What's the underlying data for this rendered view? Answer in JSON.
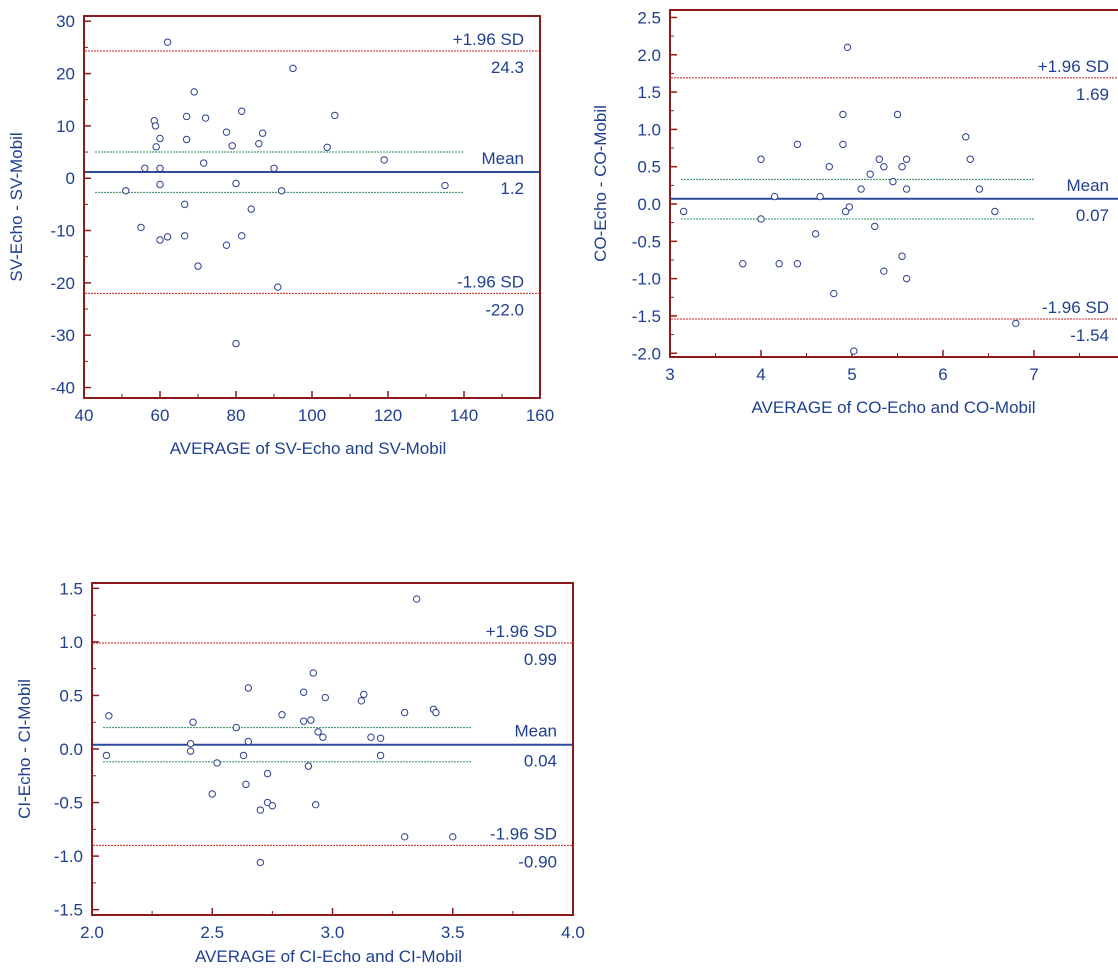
{
  "colors": {
    "frame": "#8b1a1a",
    "mean_line": "#2b4a9a",
    "limit_line": "#cc2222",
    "ci_line": "#2e8b57",
    "point_stroke": "#2b3f8f",
    "text": "#1f3f8f"
  },
  "chart_data": [
    {
      "type": "scatter",
      "title": "",
      "xlabel": "AVERAGE of SV-Echo and SV-Mobil",
      "ylabel": "SV-Echo - SV-Mobil",
      "xlim": [
        40,
        160
      ],
      "ylim": [
        -42,
        31
      ],
      "xticks": [
        40,
        60,
        80,
        100,
        120,
        140,
        160
      ],
      "yticks": [
        -40,
        -30,
        -20,
        -10,
        0,
        10,
        20,
        30
      ],
      "xtick_labels": [
        "40",
        "60",
        "80",
        "100",
        "120",
        "140",
        "160"
      ],
      "ytick_labels": [
        "-40",
        "-30",
        "-20",
        "-10",
        "0",
        "10",
        "20",
        "30"
      ],
      "lines": {
        "mean": 1.2,
        "upper": 24.3,
        "lower": -22.0,
        "mean_ci": [
          5.0,
          -2.7
        ],
        "ci_x_end": 140
      },
      "annotations": {
        "upper_label": "+1.96 SD",
        "upper_value": "24.3",
        "mean_label": "Mean",
        "mean_value": "1.2",
        "lower_label": "-1.96 SD",
        "lower_value": "-22.0"
      },
      "points": [
        [
          62,
          26
        ],
        [
          95,
          21
        ],
        [
          69,
          16.5
        ],
        [
          106,
          12
        ],
        [
          81.5,
          12.8
        ],
        [
          58.5,
          11
        ],
        [
          67,
          11.8
        ],
        [
          72,
          11.5
        ],
        [
          58.8,
          10
        ],
        [
          77.5,
          8.8
        ],
        [
          87,
          8.6
        ],
        [
          60,
          7.6
        ],
        [
          67,
          7.4
        ],
        [
          86,
          6.6
        ],
        [
          79,
          6.2
        ],
        [
          104,
          5.9
        ],
        [
          59,
          6
        ],
        [
          119,
          3.5
        ],
        [
          71.5,
          2.9
        ],
        [
          56,
          1.9
        ],
        [
          60,
          1.9
        ],
        [
          90,
          1.9
        ],
        [
          80,
          -1
        ],
        [
          60,
          -1.2
        ],
        [
          51,
          -2.4
        ],
        [
          92,
          -2.4
        ],
        [
          135,
          -1.4
        ],
        [
          84,
          -5.9
        ],
        [
          66.5,
          -5
        ],
        [
          55,
          -9.4
        ],
        [
          60,
          -11.8
        ],
        [
          62,
          -11.2
        ],
        [
          66.5,
          -11
        ],
        [
          81.5,
          -11
        ],
        [
          77.5,
          -12.8
        ],
        [
          70,
          -16.8
        ],
        [
          91,
          -20.8
        ],
        [
          80,
          -31.6
        ]
      ]
    },
    {
      "type": "scatter",
      "title": "",
      "xlabel": "AVERAGE of CO-Echo and CO-Mobil",
      "ylabel": "CO-Echo - CO-Mobil",
      "xlim": [
        3,
        8
      ],
      "ylim": [
        -2.05,
        2.6
      ],
      "xticks": [
        3,
        4,
        5,
        6,
        7,
        8
      ],
      "yticks": [
        -2.0,
        -1.5,
        -1.0,
        -0.5,
        0.0,
        0.5,
        1.0,
        1.5,
        2.0,
        2.5
      ],
      "xtick_labels": [
        "3",
        "4",
        "5",
        "6",
        "7",
        "8"
      ],
      "ytick_labels": [
        "-2.0",
        "-1.5",
        "-1.0",
        "-0.5",
        "0.0",
        "0.5",
        "1.0",
        "1.5",
        "2.0",
        "2.5"
      ],
      "lines": {
        "mean": 0.07,
        "upper": 1.69,
        "lower": -1.54,
        "mean_ci": [
          0.33,
          -0.2
        ],
        "ci_x_end": 7
      },
      "annotations": {
        "upper_label": "+1.96 SD",
        "upper_value": "1.69",
        "mean_label": "Mean",
        "mean_value": "0.07",
        "lower_label": "-1.96 SD",
        "lower_value": "-1.54"
      },
      "points": [
        [
          4.95,
          2.1
        ],
        [
          4.9,
          1.2
        ],
        [
          5.5,
          1.2
        ],
        [
          6.25,
          0.9
        ],
        [
          4.4,
          0.8
        ],
        [
          4.9,
          0.8
        ],
        [
          4,
          0.6
        ],
        [
          5.3,
          0.6
        ],
        [
          5.6,
          0.6
        ],
        [
          6.3,
          0.6
        ],
        [
          5.35,
          0.5
        ],
        [
          5.55,
          0.5
        ],
        [
          4.75,
          0.5
        ],
        [
          5.2,
          0.4
        ],
        [
          5.45,
          0.3
        ],
        [
          5.1,
          0.2
        ],
        [
          5.6,
          0.2
        ],
        [
          6.4,
          0.2
        ],
        [
          4.15,
          0.1
        ],
        [
          4.65,
          0.1
        ],
        [
          4.97,
          -0.04
        ],
        [
          4.93,
          -0.1
        ],
        [
          3.15,
          -0.1
        ],
        [
          6.57,
          -0.1
        ],
        [
          4,
          -0.2
        ],
        [
          5.25,
          -0.3
        ],
        [
          4.6,
          -0.4
        ],
        [
          5.55,
          -0.7
        ],
        [
          3.8,
          -0.8
        ],
        [
          4.2,
          -0.8
        ],
        [
          4.4,
          -0.8
        ],
        [
          5.35,
          -0.9
        ],
        [
          5.6,
          -1.0
        ],
        [
          4.8,
          -1.2
        ],
        [
          6.8,
          -1.6
        ],
        [
          5.02,
          -1.97
        ]
      ]
    },
    {
      "type": "scatter",
      "title": "",
      "xlabel": "AVERAGE of CI-Echo and CI-Mobil",
      "ylabel": "CI-Echo - CI-Mobil",
      "xlim": [
        2.0,
        4.0
      ],
      "ylim": [
        -1.55,
        1.55
      ],
      "xticks": [
        2.0,
        2.5,
        3.0,
        3.5,
        4.0
      ],
      "yticks": [
        -1.5,
        -1.0,
        -0.5,
        0.0,
        0.5,
        1.0,
        1.5
      ],
      "xtick_labels": [
        "2.0",
        "2.5",
        "3.0",
        "3.5",
        "4.0"
      ],
      "ytick_labels": [
        "-1.5",
        "-1.0",
        "-0.5",
        "0.0",
        "0.5",
        "1.0",
        "1.5"
      ],
      "lines": {
        "mean": 0.04,
        "upper": 0.99,
        "lower": -0.9,
        "mean_ci": [
          0.2,
          -0.12
        ],
        "ci_x_end": 3.58
      },
      "annotations": {
        "upper_label": "+1.96 SD",
        "upper_value": "0.99",
        "mean_label": "Mean",
        "mean_value": "0.04",
        "lower_label": "-1.96 SD",
        "lower_value": "-0.90"
      },
      "points": [
        [
          3.35,
          1.4
        ],
        [
          2.92,
          0.71
        ],
        [
          2.65,
          0.57
        ],
        [
          2.88,
          0.53
        ],
        [
          3.13,
          0.51
        ],
        [
          2.97,
          0.48
        ],
        [
          3.12,
          0.45
        ],
        [
          3.42,
          0.37
        ],
        [
          3.43,
          0.34
        ],
        [
          3.3,
          0.34
        ],
        [
          2.79,
          0.32
        ],
        [
          2.07,
          0.31
        ],
        [
          2.88,
          0.26
        ],
        [
          2.91,
          0.27
        ],
        [
          2.42,
          0.25
        ],
        [
          2.6,
          0.2
        ],
        [
          2.94,
          0.16
        ],
        [
          2.96,
          0.11
        ],
        [
          3.16,
          0.11
        ],
        [
          3.2,
          0.1
        ],
        [
          2.41,
          0.05
        ],
        [
          2.65,
          0.07
        ],
        [
          2.41,
          -0.02
        ],
        [
          2.06,
          -0.06
        ],
        [
          2.63,
          -0.06
        ],
        [
          3.2,
          -0.06
        ],
        [
          2.52,
          -0.13
        ],
        [
          2.9,
          -0.16
        ],
        [
          2.73,
          -0.23
        ],
        [
          2.64,
          -0.33
        ],
        [
          2.5,
          -0.42
        ],
        [
          2.73,
          -0.5
        ],
        [
          2.75,
          -0.53
        ],
        [
          2.93,
          -0.52
        ],
        [
          2.7,
          -0.57
        ],
        [
          3.3,
          -0.82
        ],
        [
          3.5,
          -0.82
        ],
        [
          2.7,
          -1.06
        ]
      ]
    }
  ]
}
